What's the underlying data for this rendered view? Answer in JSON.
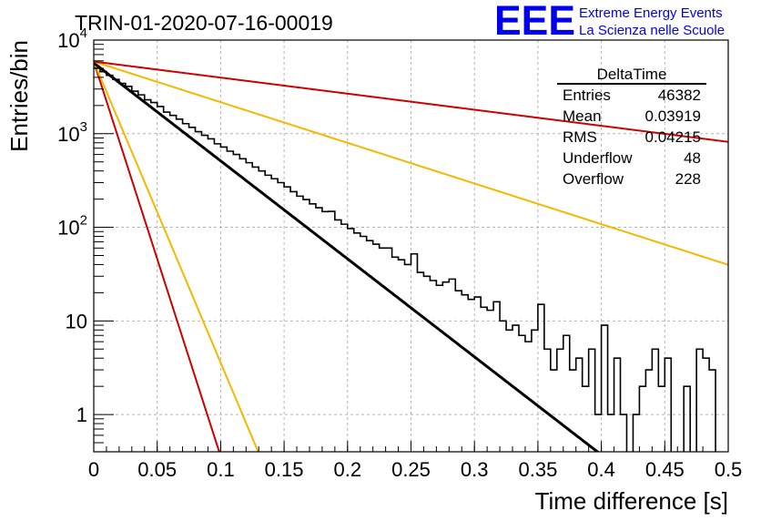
{
  "chart_data": {
    "type": "line",
    "title": "TRIN-01-2020-07-16-00019",
    "xlabel": "Time difference [s]",
    "ylabel": "Entries/bin",
    "xlim": [
      0,
      0.5
    ],
    "ylim": [
      0.4,
      10000
    ],
    "yscale": "log",
    "grid": true,
    "x_ticks": [
      "0",
      "0.05",
      "0.1",
      "0.15",
      "0.2",
      "0.25",
      "0.3",
      "0.35",
      "0.4",
      "0.45",
      "0.5"
    ],
    "y_tick_labels": [
      {
        "base": "1",
        "exp": "",
        "value": 1
      },
      {
        "base": "10",
        "exp": "",
        "value": 10
      },
      {
        "base": "10",
        "exp": "2",
        "value": 100
      },
      {
        "base": "10",
        "exp": "3",
        "value": 1000
      },
      {
        "base": "10",
        "exp": "4",
        "value": 10000
      }
    ],
    "logo": {
      "mark": "EEE",
      "line1": "Extreme Energy Events",
      "line2": "La Scienza nelle Scuole"
    },
    "stats": {
      "name": "DeltaTime",
      "rows": [
        {
          "label": "Entries",
          "value": "46382"
        },
        {
          "label": "Mean",
          "value": "0.03919"
        },
        {
          "label": "RMS",
          "value": "0.04215"
        },
        {
          "label": "Underflow",
          "value": "48"
        },
        {
          "label": "Overflow",
          "value": "228"
        }
      ]
    },
    "histogram": {
      "bin_width": 0.005,
      "counts": [
        5000,
        4600,
        4200,
        3800,
        3450,
        3200,
        2850,
        2600,
        2300,
        2150,
        1950,
        1700,
        1570,
        1430,
        1280,
        1170,
        1050,
        960,
        880,
        780,
        720,
        650,
        600,
        540,
        490,
        440,
        400,
        360,
        330,
        300,
        270,
        240,
        215,
        198,
        178,
        162,
        147,
        148,
        120,
        108,
        97,
        87,
        80,
        72,
        66,
        60,
        60,
        48,
        45,
        40,
        52,
        33,
        30,
        27,
        24,
        26,
        28,
        21,
        19,
        17,
        18,
        14,
        13,
        16,
        10,
        8,
        9,
        7,
        6,
        8,
        15,
        5,
        3,
        5,
        7,
        3,
        4,
        2,
        5,
        1,
        9,
        1,
        4,
        1,
        0,
        1,
        2,
        3,
        5,
        2,
        4,
        0,
        0,
        2,
        0,
        5,
        4,
        3,
        0,
        0
      ]
    },
    "series": [
      {
        "color": "#cc0000",
        "x0": 0,
        "y0": 5900,
        "tau": 0.0103
      },
      {
        "color": "#f5b800",
        "x0": 0,
        "y0": 5900,
        "tau": 0.0135
      },
      {
        "color": "#000000",
        "x0": 0,
        "y0": 5700,
        "tau": 0.0415
      },
      {
        "color": "#f5b800",
        "x0": 0,
        "y0": 5900,
        "tau": 0.1
      },
      {
        "color": "#cc0000",
        "x0": 0,
        "y0": 5900,
        "tau": 0.253
      }
    ]
  }
}
